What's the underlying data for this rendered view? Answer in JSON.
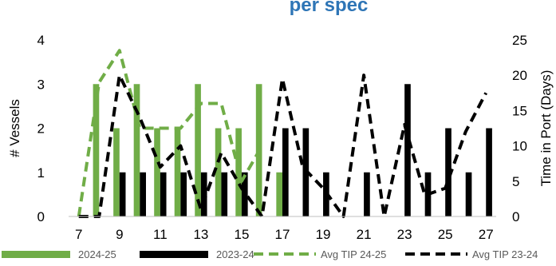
{
  "title_fragment": "per spec",
  "chart_data": {
    "type": "bar",
    "x": [
      7,
      8,
      9,
      10,
      11,
      12,
      13,
      14,
      15,
      16,
      17,
      18,
      19,
      20,
      21,
      22,
      23,
      24,
      25,
      26,
      27
    ],
    "x_ticks": [
      "7",
      "9",
      "11",
      "13",
      "15",
      "17",
      "19",
      "21",
      "23",
      "25",
      "27"
    ],
    "ylabel": "# Vessels",
    "y2label": "Time in Port (Days)",
    "ylim": [
      0,
      4
    ],
    "y2lim": [
      0,
      25
    ],
    "y_ticks": [
      "0",
      "1",
      "2",
      "3",
      "4"
    ],
    "y2_ticks": [
      "0",
      "5",
      "10",
      "15",
      "20",
      "25"
    ],
    "grid": false,
    "legend_position": "bottom",
    "series": [
      {
        "name": "2024-25",
        "type": "bar",
        "axis": "left",
        "color": "#70ad47",
        "values": [
          0,
          3,
          2,
          3,
          2,
          2,
          3,
          2,
          2,
          3,
          1,
          0,
          0,
          0,
          0,
          0,
          0,
          0,
          0,
          0,
          0
        ]
      },
      {
        "name": "2023-24",
        "type": "bar",
        "axis": "left",
        "color": "#000000",
        "values": [
          0,
          0,
          1,
          1,
          1,
          1,
          1,
          1,
          1,
          0,
          2,
          2,
          1,
          0,
          1,
          0,
          3,
          1,
          2,
          1,
          2
        ]
      },
      {
        "name": "Avg TIP 24-25",
        "type": "line",
        "axis": "right",
        "color": "#70ad47",
        "dash": "dashed",
        "values": [
          0,
          19,
          23.5,
          12.5,
          12.5,
          12.5,
          16,
          16,
          5,
          10,
          null,
          null,
          null,
          null,
          null,
          null,
          null,
          null,
          null,
          null,
          null
        ]
      },
      {
        "name": "Avg TIP 23-24",
        "type": "line",
        "axis": "right",
        "color": "#000000",
        "dash": "dashed",
        "values": [
          0,
          0,
          20,
          14,
          7,
          10,
          1,
          9,
          4,
          0,
          19.5,
          7,
          4,
          0,
          20,
          0,
          13,
          3,
          4,
          12,
          17.5
        ]
      }
    ]
  }
}
